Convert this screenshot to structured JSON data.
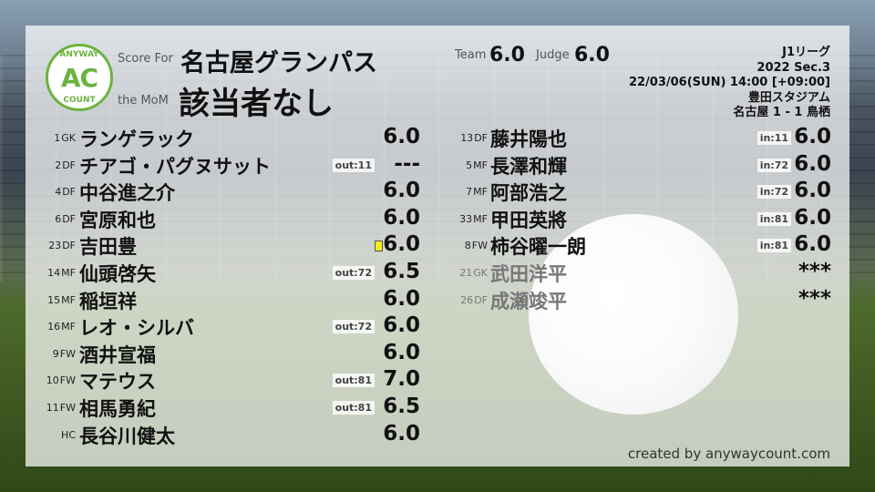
{
  "header": {
    "logo_top": "ANYWAY",
    "logo_mid": "AC",
    "logo_bottom": "COUNT",
    "score_for_label": "Score For",
    "team": "名古屋グランパス",
    "mom_label": "the MoM",
    "mom": "該当者なし",
    "team_label": "Team",
    "team_score": "6.0",
    "judge_label": "Judge",
    "judge_score": "6.0"
  },
  "match": {
    "league": "J1リーグ",
    "round": "2022 Sec.3",
    "datetime": "22/03/06(SUN) 14:00 [+09:00]",
    "stadium": "豊田スタジアム",
    "result": "名古屋 1 - 1 鳥栖"
  },
  "left_players": [
    {
      "num": "1",
      "pos": "GK",
      "name": "ランゲラック",
      "tag": "",
      "score": "6.0"
    },
    {
      "num": "2",
      "pos": "DF",
      "name": "チアゴ・パグヌサット",
      "tag": "out:11",
      "score": "---"
    },
    {
      "num": "4",
      "pos": "DF",
      "name": "中谷進之介",
      "tag": "",
      "score": "6.0"
    },
    {
      "num": "6",
      "pos": "DF",
      "name": "宮原和也",
      "tag": "",
      "score": "6.0"
    },
    {
      "num": "23",
      "pos": "DF",
      "name": "吉田豊",
      "tag": "",
      "score": "6.0",
      "card": "yellow"
    },
    {
      "num": "14",
      "pos": "MF",
      "name": "仙頭啓矢",
      "tag": "out:72",
      "score": "6.5"
    },
    {
      "num": "15",
      "pos": "MF",
      "name": "稲垣祥",
      "tag": "",
      "score": "6.0"
    },
    {
      "num": "16",
      "pos": "MF",
      "name": "レオ・シルバ",
      "tag": "out:72",
      "score": "6.0"
    },
    {
      "num": "9",
      "pos": "FW",
      "name": "酒井宣福",
      "tag": "",
      "score": "6.0"
    },
    {
      "num": "10",
      "pos": "FW",
      "name": "マテウス",
      "tag": "out:81",
      "score": "7.0"
    },
    {
      "num": "11",
      "pos": "FW",
      "name": "相馬勇紀",
      "tag": "out:81",
      "score": "6.5"
    },
    {
      "num": "",
      "pos": "HC",
      "name": "長谷川健太",
      "tag": "",
      "score": "6.0"
    }
  ],
  "right_players": [
    {
      "num": "13",
      "pos": "DF",
      "name": "藤井陽也",
      "tag": "in:11",
      "score": "6.0"
    },
    {
      "num": "5",
      "pos": "MF",
      "name": "長澤和輝",
      "tag": "in:72",
      "score": "6.0"
    },
    {
      "num": "7",
      "pos": "MF",
      "name": "阿部浩之",
      "tag": "in:72",
      "score": "6.0"
    },
    {
      "num": "33",
      "pos": "MF",
      "name": "甲田英將",
      "tag": "in:81",
      "score": "6.0"
    },
    {
      "num": "8",
      "pos": "FW",
      "name": "柿谷曜一朗",
      "tag": "in:81",
      "score": "6.0"
    },
    {
      "num": "21",
      "pos": "GK",
      "name": "武田洋平",
      "tag": "",
      "score": "***",
      "unused": true
    },
    {
      "num": "26",
      "pos": "DF",
      "name": "成瀬竣平",
      "tag": "",
      "score": "***",
      "unused": true
    }
  ],
  "footer": "created by anywaycount.com",
  "colors": {
    "brand": "#6cb33f",
    "yellow_card": "#f4ea1e"
  }
}
